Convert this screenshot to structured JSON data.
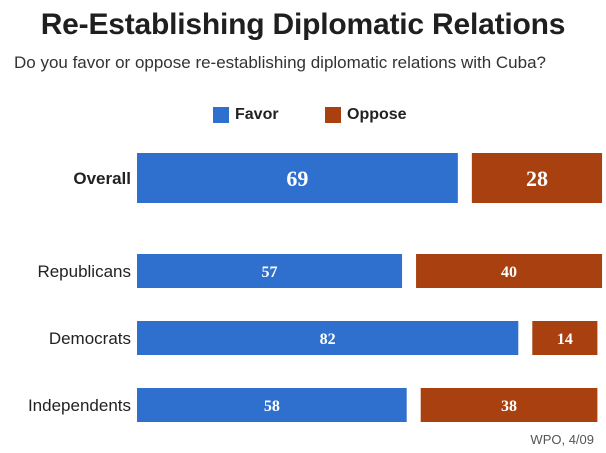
{
  "title": "Re-Establishing Diplomatic Relations",
  "subtitle": "Do you favor or oppose re-establishing diplomatic relations with Cuba?",
  "legend": [
    {
      "label": "Favor",
      "color": "#2f6fce"
    },
    {
      "label": "Oppose",
      "color": "#a8400f"
    }
  ],
  "source": "WPO, 4/09",
  "chart_data": {
    "type": "bar",
    "orientation": "horizontal",
    "stacked": false,
    "categories": [
      "Overall",
      "Republicans",
      "Democrats",
      "Independents"
    ],
    "series": [
      {
        "name": "Favor",
        "values": [
          69,
          57,
          82,
          58
        ],
        "color": "#2f6fce"
      },
      {
        "name": "Oppose",
        "values": [
          28,
          40,
          14,
          38
        ],
        "color": "#a8400f"
      }
    ],
    "title": "Re-Establishing Diplomatic Relations",
    "legend_position": "top",
    "grid": false,
    "data_labels": true
  }
}
